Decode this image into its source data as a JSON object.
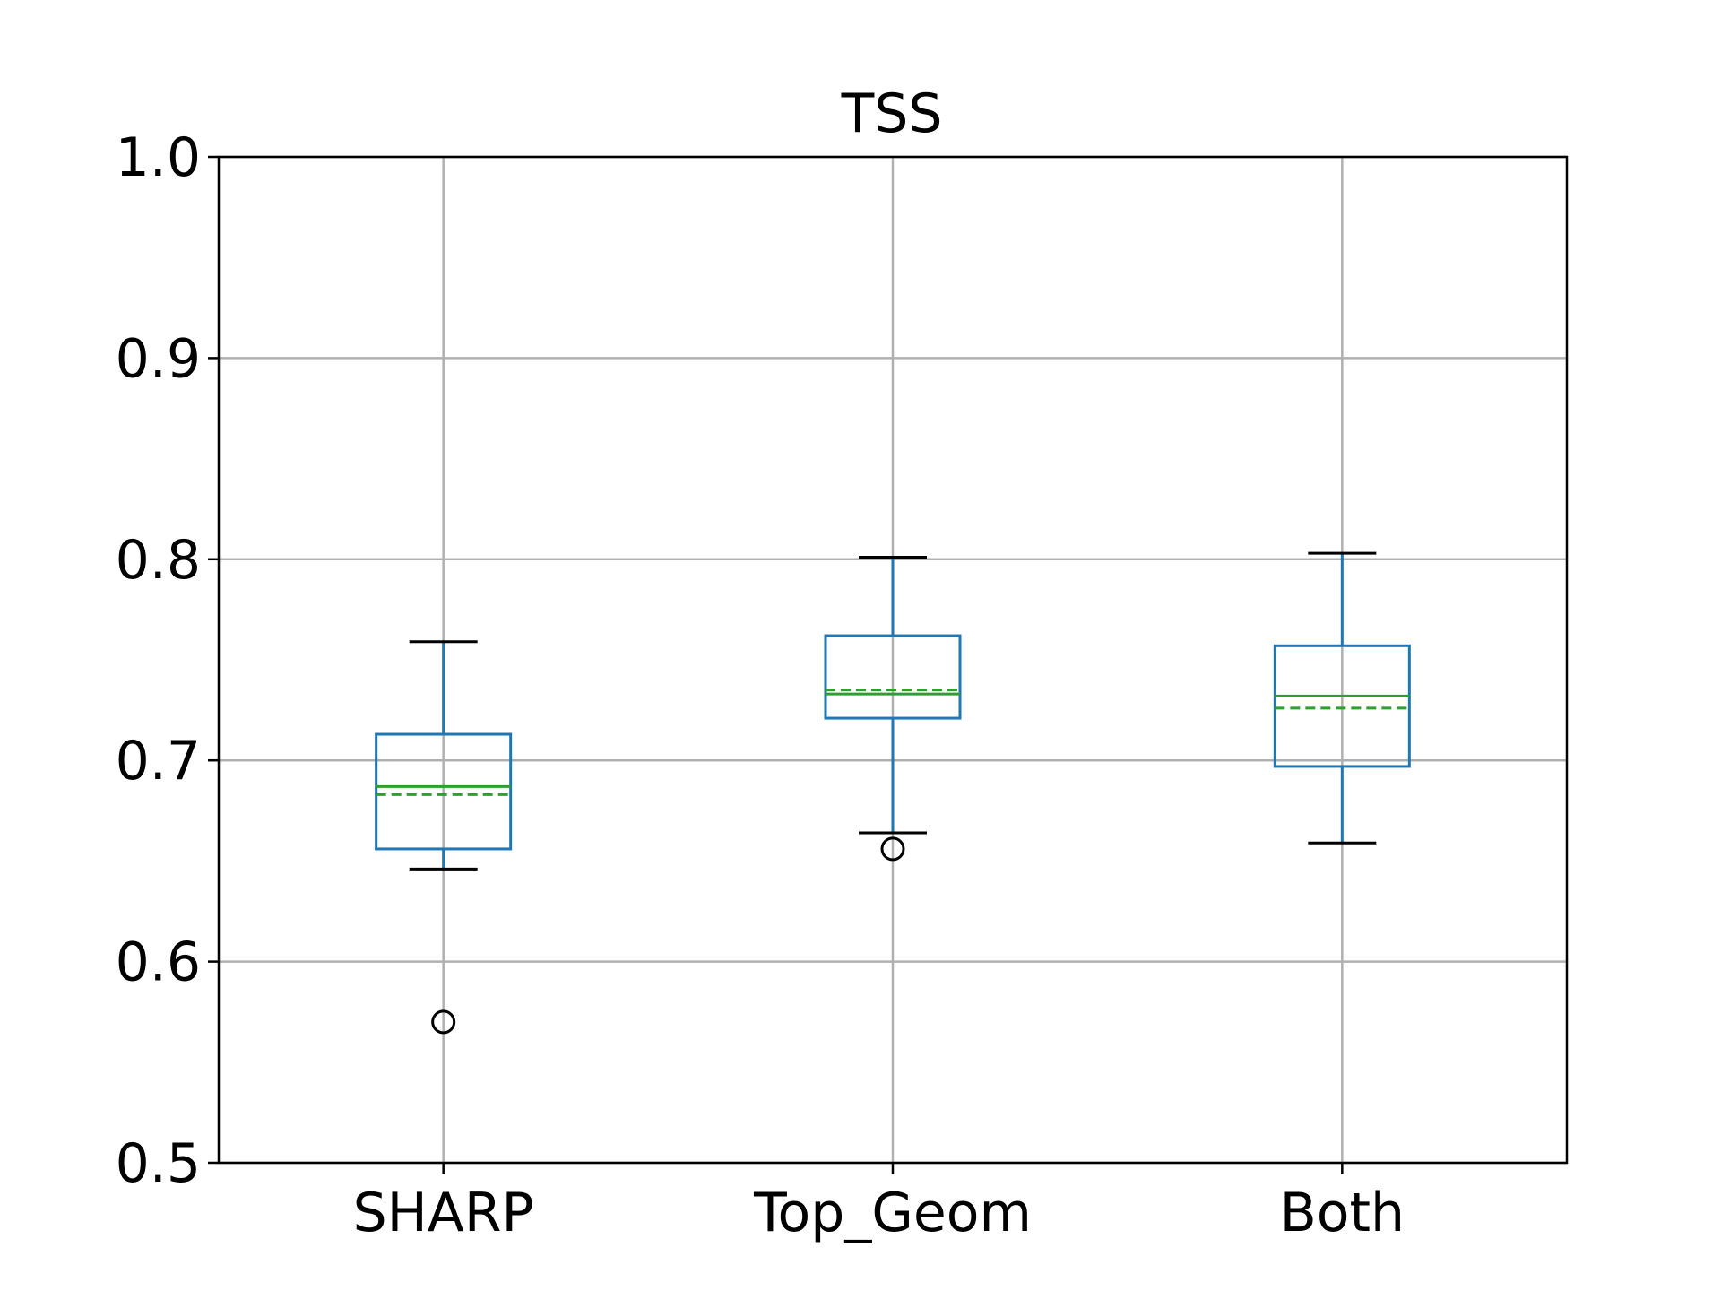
{
  "chart_data": {
    "type": "box",
    "title": "TSS",
    "xlabel": "",
    "ylabel": "",
    "categories": [
      "SHARP",
      "Top_Geom",
      "Both"
    ],
    "ylim": [
      0.5,
      1.0
    ],
    "yticks": [
      "0.5",
      "0.6",
      "0.7",
      "0.8",
      "0.9",
      "1.0"
    ],
    "grid": true,
    "legend": "none",
    "boxes": [
      {
        "category": "SHARP",
        "whisker_low": 0.646,
        "q1": 0.656,
        "median": 0.687,
        "mean": 0.683,
        "q3": 0.713,
        "whisker_high": 0.759,
        "outliers": [
          0.57
        ]
      },
      {
        "category": "Top_Geom",
        "whisker_low": 0.664,
        "q1": 0.721,
        "median": 0.733,
        "mean": 0.735,
        "q3": 0.762,
        "whisker_high": 0.801,
        "outliers": [
          0.656
        ]
      },
      {
        "category": "Both",
        "whisker_low": 0.659,
        "q1": 0.697,
        "median": 0.732,
        "mean": 0.726,
        "q3": 0.757,
        "whisker_high": 0.803,
        "outliers": []
      }
    ],
    "colors": {
      "box": "#1f77b4",
      "median": "#2ca02c",
      "mean": "#2ca02c",
      "cap": "#000000",
      "outlier": "#000000",
      "grid": "#b0b0b0",
      "axes": "#000000"
    }
  }
}
